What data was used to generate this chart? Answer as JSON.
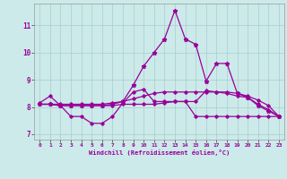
{
  "xlabel": "Windchill (Refroidissement éolien,°C)",
  "x": [
    0,
    1,
    2,
    3,
    4,
    5,
    6,
    7,
    8,
    9,
    10,
    11,
    12,
    13,
    14,
    15,
    16,
    17,
    18,
    19,
    20,
    21,
    22,
    23
  ],
  "line_spike": [
    8.1,
    8.1,
    8.05,
    8.05,
    8.05,
    8.05,
    8.05,
    8.1,
    8.2,
    8.8,
    9.5,
    10.0,
    10.5,
    11.55,
    10.5,
    10.3,
    8.95,
    9.6,
    9.6,
    8.5,
    8.35,
    8.05,
    7.85,
    7.65
  ],
  "line_zigzag": [
    8.15,
    8.4,
    8.05,
    7.65,
    7.65,
    7.4,
    7.4,
    7.65,
    8.15,
    8.55,
    8.65,
    8.2,
    8.2,
    8.2,
    8.2,
    8.2,
    8.6,
    8.55,
    8.5,
    8.4,
    8.35,
    8.1,
    7.9,
    7.65
  ],
  "line_lower": [
    8.1,
    8.1,
    8.05,
    8.05,
    8.05,
    8.05,
    8.05,
    8.05,
    8.1,
    8.1,
    8.1,
    8.1,
    8.15,
    8.2,
    8.2,
    7.65,
    7.65,
    7.65,
    7.65,
    7.65,
    7.65,
    7.65,
    7.65,
    7.65
  ],
  "line_trend": [
    8.1,
    8.1,
    8.1,
    8.1,
    8.1,
    8.1,
    8.1,
    8.15,
    8.2,
    8.3,
    8.4,
    8.5,
    8.55,
    8.55,
    8.55,
    8.55,
    8.55,
    8.55,
    8.55,
    8.5,
    8.4,
    8.25,
    8.05,
    7.65
  ],
  "line_color": "#990099",
  "bg_color": "#cceaea",
  "grid_color": "#aacccc",
  "ylim": [
    6.8,
    11.8
  ],
  "yticks": [
    7,
    8,
    9,
    10,
    11
  ],
  "xticks": [
    0,
    1,
    2,
    3,
    4,
    5,
    6,
    7,
    8,
    9,
    10,
    11,
    12,
    13,
    14,
    15,
    16,
    17,
    18,
    19,
    20,
    21,
    22,
    23
  ]
}
